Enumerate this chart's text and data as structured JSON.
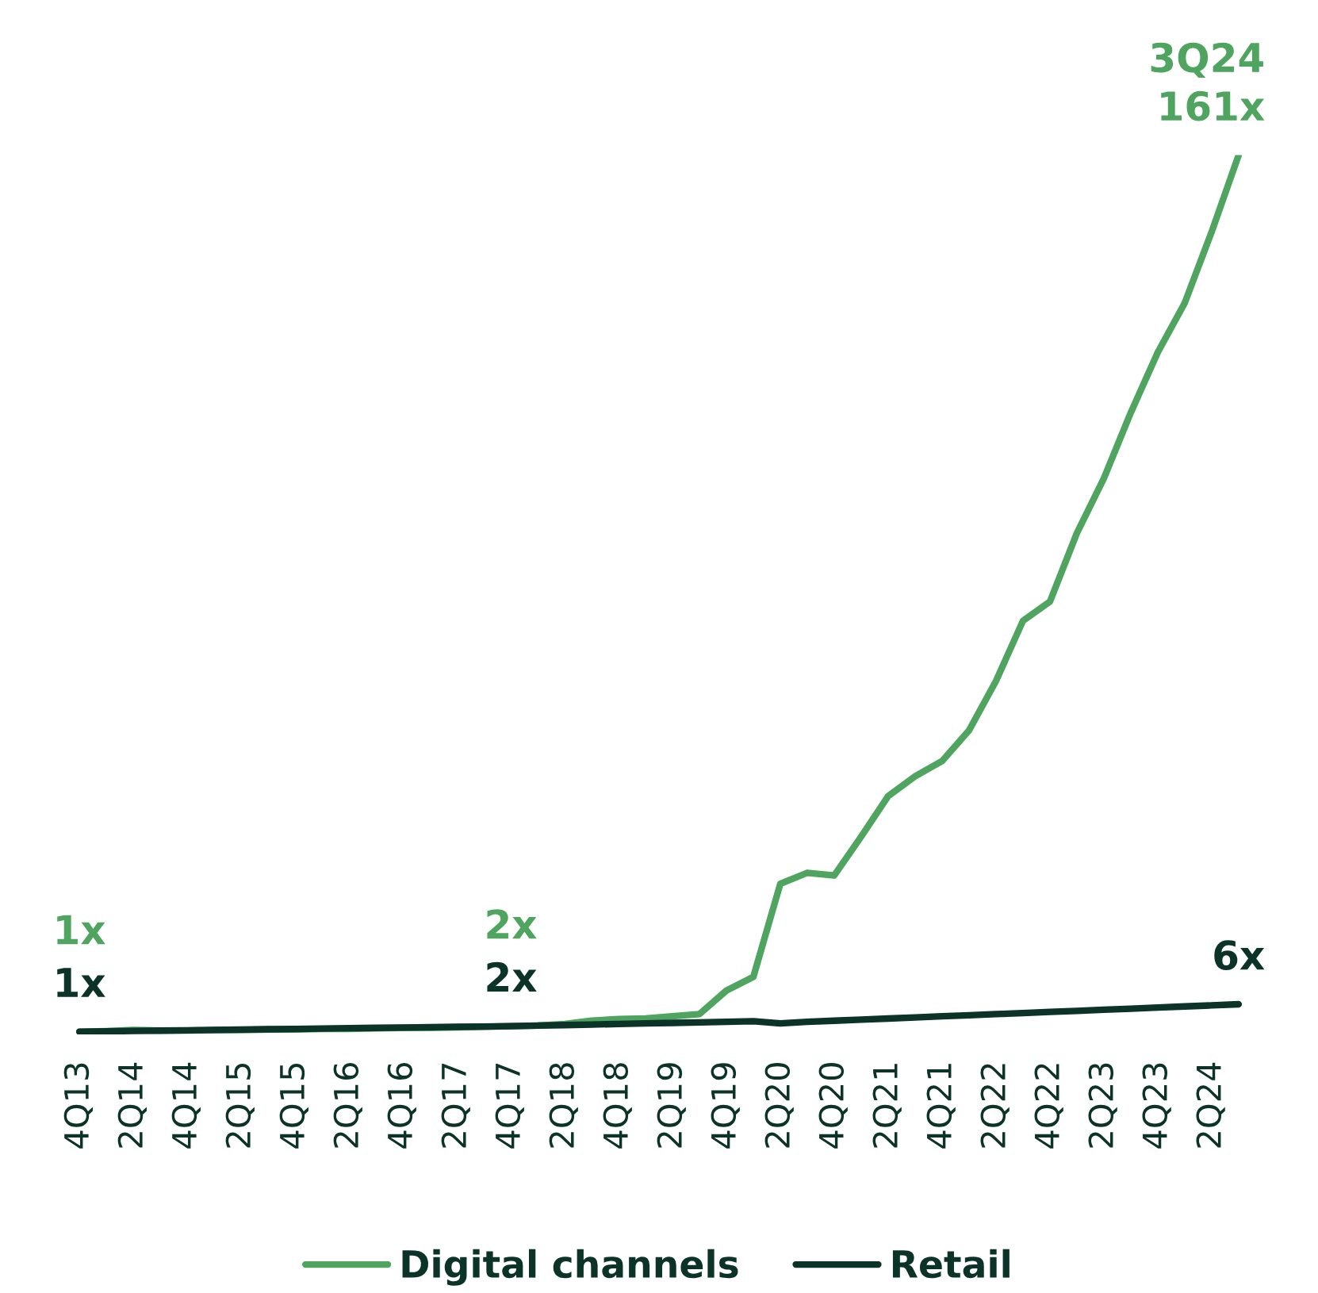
{
  "chart_data": {
    "type": "line",
    "categories": [
      "4Q13",
      null,
      "2Q14",
      null,
      "4Q14",
      null,
      "2Q15",
      null,
      "4Q15",
      null,
      "2Q16",
      null,
      "4Q16",
      null,
      "2Q17",
      null,
      "4Q17",
      null,
      "2Q18",
      null,
      "4Q18",
      null,
      "2Q19",
      null,
      "4Q19",
      null,
      "2Q20",
      null,
      "4Q20",
      null,
      "2Q21",
      null,
      "4Q21",
      null,
      "2Q22",
      null,
      "4Q22",
      null,
      "2Q23",
      null,
      "4Q23",
      null,
      "2Q24",
      null
    ],
    "series": [
      {
        "name": "Digital channels",
        "color": "#4fa45f",
        "values": [
          1,
          1.1,
          1.3,
          1.2,
          1.2,
          1.3,
          1.3,
          1.4,
          1.4,
          1.5,
          1.5,
          1.6,
          1.7,
          1.7,
          1.8,
          1.9,
          2,
          2.1,
          2.4,
          3,
          3.3,
          3.4,
          3.8,
          4.2,
          8.5,
          11,
          28,
          30,
          29.5,
          36.6,
          44,
          47.6,
          50.4,
          56,
          65,
          76,
          79.5,
          92,
          102,
          114,
          125,
          134,
          147,
          161
        ],
        "value_labels": [
          "1x",
          null,
          null,
          null,
          null,
          null,
          null,
          null,
          null,
          null,
          null,
          null,
          null,
          null,
          null,
          null,
          "2x",
          null,
          null,
          null,
          null,
          null,
          null,
          null,
          null,
          null,
          null,
          null,
          null,
          null,
          null,
          null,
          null,
          null,
          null,
          null,
          null,
          null,
          null,
          null,
          null,
          null,
          null,
          "161x"
        ]
      },
      {
        "name": "Retail",
        "color": "#0c3328",
        "values": [
          1,
          1.06,
          1.13,
          1.19,
          1.25,
          1.31,
          1.38,
          1.44,
          1.5,
          1.56,
          1.63,
          1.69,
          1.75,
          1.81,
          1.88,
          1.94,
          2,
          2.1,
          2.2,
          2.3,
          2.4,
          2.5,
          2.6,
          2.7,
          2.8,
          2.9,
          2.5,
          2.8,
          3,
          3.2,
          3.4,
          3.6,
          3.8,
          4,
          4.2,
          4.4,
          4.6,
          4.8,
          5,
          5.2,
          5.4,
          5.6,
          5.8,
          6
        ],
        "value_labels": [
          "1x",
          null,
          null,
          null,
          null,
          null,
          null,
          null,
          null,
          null,
          null,
          null,
          null,
          null,
          null,
          null,
          "2x",
          null,
          null,
          null,
          null,
          null,
          null,
          null,
          null,
          null,
          null,
          null,
          null,
          null,
          null,
          null,
          null,
          null,
          null,
          null,
          null,
          null,
          null,
          null,
          null,
          null,
          null,
          "6x"
        ]
      }
    ],
    "annotations": [
      "3Q24"
    ],
    "legend": "bottom",
    "grid": false,
    "marker": "none",
    "line_style": "solid"
  }
}
